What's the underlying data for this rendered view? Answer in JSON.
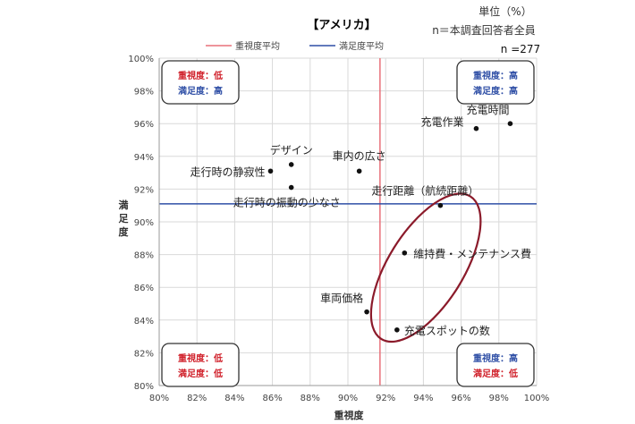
{
  "chart_data": {
    "type": "scatter",
    "title": "【アメリカ】",
    "unit_note": "単位（%）",
    "sample_note": "n＝本調査回答者全員",
    "n_label": "n =277",
    "xlabel": "重視度",
    "ylabel": "満足度",
    "xlim": [
      80,
      100
    ],
    "ylim": [
      80,
      100
    ],
    "x_ticks": [
      80,
      82,
      84,
      86,
      88,
      90,
      92,
      94,
      96,
      98,
      100
    ],
    "y_ticks": [
      80,
      82,
      84,
      86,
      88,
      90,
      92,
      94,
      96,
      98,
      100
    ],
    "x_tick_labels": [
      "80%",
      "82%",
      "84%",
      "86%",
      "88%",
      "90%",
      "92%",
      "94%",
      "96%",
      "98%",
      "100%"
    ],
    "y_tick_labels": [
      "80%",
      "82%",
      "84%",
      "86%",
      "88%",
      "90%",
      "92%",
      "94%",
      "96%",
      "98%",
      "100%"
    ],
    "grid": true,
    "legend": {
      "placement": "top",
      "items": [
        {
          "label": "重視度平均",
          "color": "#e8707a"
        },
        {
          "label": "満足度平均",
          "color": "#2f4fa6"
        }
      ]
    },
    "reference_lines": {
      "importance_avg_x": 91.7,
      "satisfaction_avg_y": 91.1
    },
    "points": [
      {
        "label": "充電時間",
        "x": 98.6,
        "y": 96.0
      },
      {
        "label": "充電作業",
        "x": 96.8,
        "y": 95.7
      },
      {
        "label": "デザイン",
        "x": 87.0,
        "y": 93.5
      },
      {
        "label": "車内の広さ",
        "x": 90.6,
        "y": 93.1
      },
      {
        "label": "走行時の静寂性",
        "x": 85.9,
        "y": 93.1
      },
      {
        "label": "走行時の振動の少なさ",
        "x": 87.0,
        "y": 92.1
      },
      {
        "label": "走行距離（航続距離）",
        "x": 94.9,
        "y": 91.0
      },
      {
        "label": "維持費・メンテナンス費",
        "x": 93.0,
        "y": 88.1
      },
      {
        "label": "車両価格",
        "x": 91.0,
        "y": 84.5
      },
      {
        "label": "充電スポットの数",
        "x": 92.6,
        "y": 83.4
      }
    ],
    "quadrant_boxes": [
      {
        "position": "top-left",
        "line1": "重視度：低",
        "line2": "満足度：高",
        "color1": "#d0202a",
        "color2": "#2f4fa6"
      },
      {
        "position": "top-right",
        "line1": "重視度：高",
        "line2": "満足度：高",
        "color1": "#2f4fa6",
        "color2": "#2f4fa6"
      },
      {
        "position": "bottom-left",
        "line1": "重視度：低",
        "line2": "満足度：低",
        "color1": "#d0202a",
        "color2": "#d0202a"
      },
      {
        "position": "bottom-right",
        "line1": "重視度：高",
        "line2": "満足度：低",
        "color1": "#2f4fa6",
        "color2": "#d0202a"
      }
    ],
    "highlight_ellipse_color": "#8b1a2a"
  }
}
